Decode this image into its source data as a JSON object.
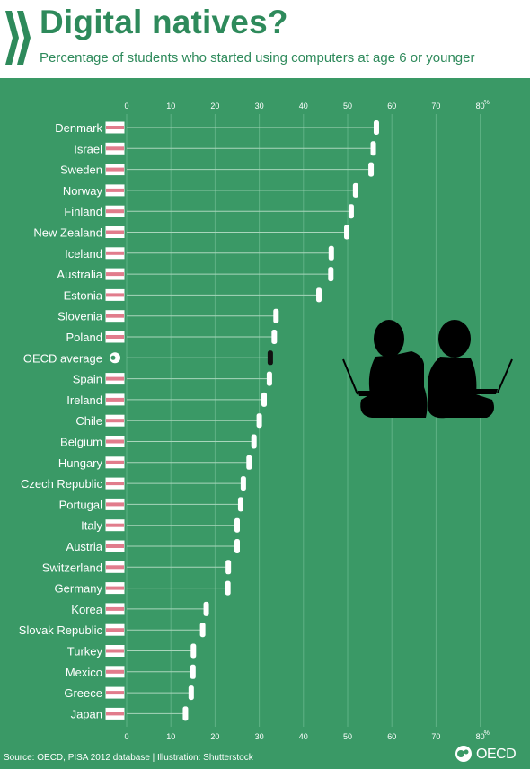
{
  "header": {
    "title": "Digital natives?",
    "subtitle": "Percentage of students who started using computers at age 6 or younger"
  },
  "footer": {
    "source": "Source: OECD, PISA 2012 database | Illustration: Shutterstock",
    "logo_text": "OECD"
  },
  "colors": {
    "background": "#3a9966",
    "header_bg": "#ffffff",
    "title": "#2e8a5b",
    "marker": "#ffffff",
    "highlight_marker": "#111111"
  },
  "chart_data": {
    "type": "dot",
    "title": "Digital natives?",
    "subtitle": "Percentage of students who started using computers at age 6 or younger",
    "unit": "%",
    "xlim": [
      0,
      80
    ],
    "ticks": [
      0,
      10,
      20,
      30,
      40,
      50,
      60,
      70,
      80
    ],
    "grid": true,
    "highlight": "OECD average",
    "categories": [
      "Denmark",
      "Israel",
      "Sweden",
      "Norway",
      "Finland",
      "New Zealand",
      "Iceland",
      "Australia",
      "Estonia",
      "Slovenia",
      "Poland",
      "OECD average",
      "Spain",
      "Ireland",
      "Chile",
      "Belgium",
      "Hungary",
      "Czech Republic",
      "Portugal",
      "Italy",
      "Austria",
      "Switzerland",
      "Germany",
      "Korea",
      "Slovak Republic",
      "Turkey",
      "Mexico",
      "Greece",
      "Japan"
    ],
    "values": [
      56.5,
      55.8,
      55.3,
      51.8,
      50.8,
      49.8,
      46.3,
      46.2,
      43.5,
      33.8,
      33.4,
      32.5,
      32.3,
      31.1,
      30.0,
      28.8,
      27.7,
      26.4,
      25.8,
      25.0,
      25.0,
      23.0,
      22.9,
      18.0,
      17.2,
      15.1,
      15.0,
      14.6,
      13.3
    ]
  }
}
